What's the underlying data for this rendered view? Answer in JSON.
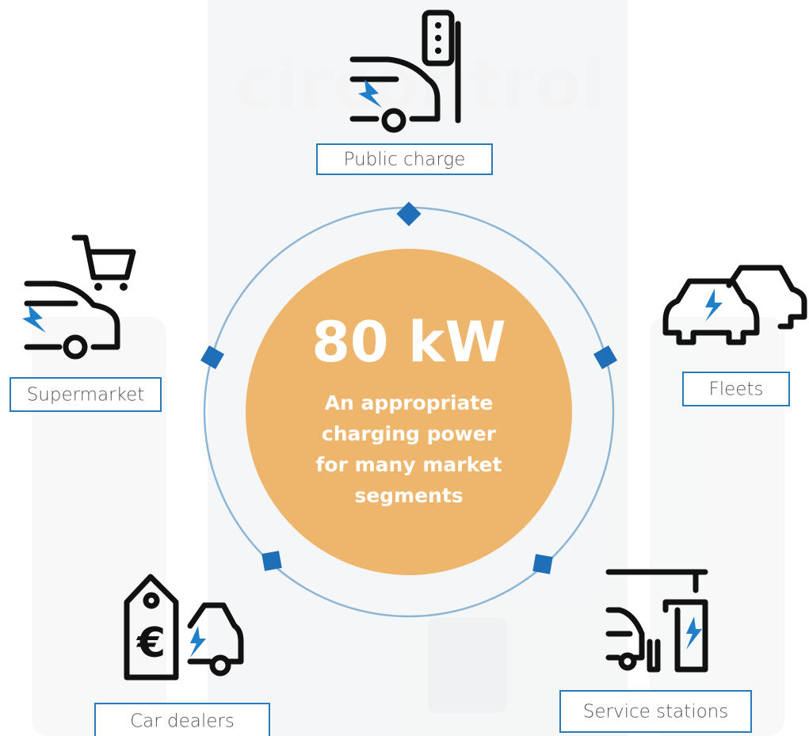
{
  "background": {
    "logo": "circontrol"
  },
  "center": {
    "title": "80 kW",
    "subtitle_lines": [
      "An appropriate",
      "charging power",
      "for many market",
      "segments"
    ]
  },
  "segments": [
    {
      "label": "Public charge"
    },
    {
      "label": "Supermarket"
    },
    {
      "label": "Fleets"
    },
    {
      "label": "Car dealers"
    },
    {
      "label": "Service stations"
    }
  ]
}
